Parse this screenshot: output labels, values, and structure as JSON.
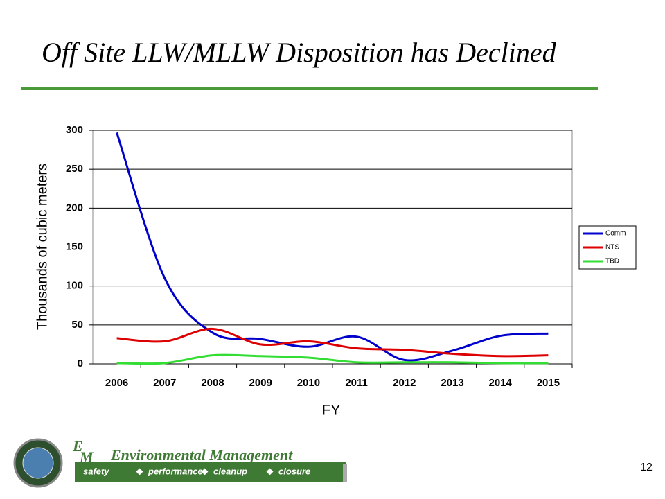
{
  "chart_data": {
    "type": "line",
    "title": "Off Site LLW/MLLW Disposition has Declined",
    "x_label": "FY",
    "y_label": "Thousands of cubic meters",
    "categories": [
      "2006",
      "2007",
      "2008",
      "2009",
      "2010",
      "2011",
      "2012",
      "2013",
      "2014",
      "2015"
    ],
    "series": [
      {
        "name": "Comm",
        "color": "#0000cc",
        "values": [
          297,
          110,
          40,
          32,
          22,
          35,
          5,
          17,
          36,
          39
        ]
      },
      {
        "name": "NTS",
        "color": "#dd0000",
        "values": [
          33,
          29,
          45,
          25,
          29,
          20,
          18,
          13,
          10,
          11
        ]
      },
      {
        "name": "TBD",
        "color": "#33dd33",
        "values": [
          1,
          1,
          11,
          10,
          8,
          2,
          2,
          2,
          1,
          1
        ]
      }
    ],
    "ylim": [
      0,
      300
    ],
    "yticks": [
      0,
      50,
      100,
      150,
      200,
      250,
      300
    ],
    "grid": true,
    "legend": "right"
  },
  "footer": {
    "logo_e": "E",
    "logo_m": "M",
    "org": "Environmental Management",
    "motto": [
      "safety",
      "performance",
      "cleanup",
      "closure"
    ],
    "page": "12"
  }
}
